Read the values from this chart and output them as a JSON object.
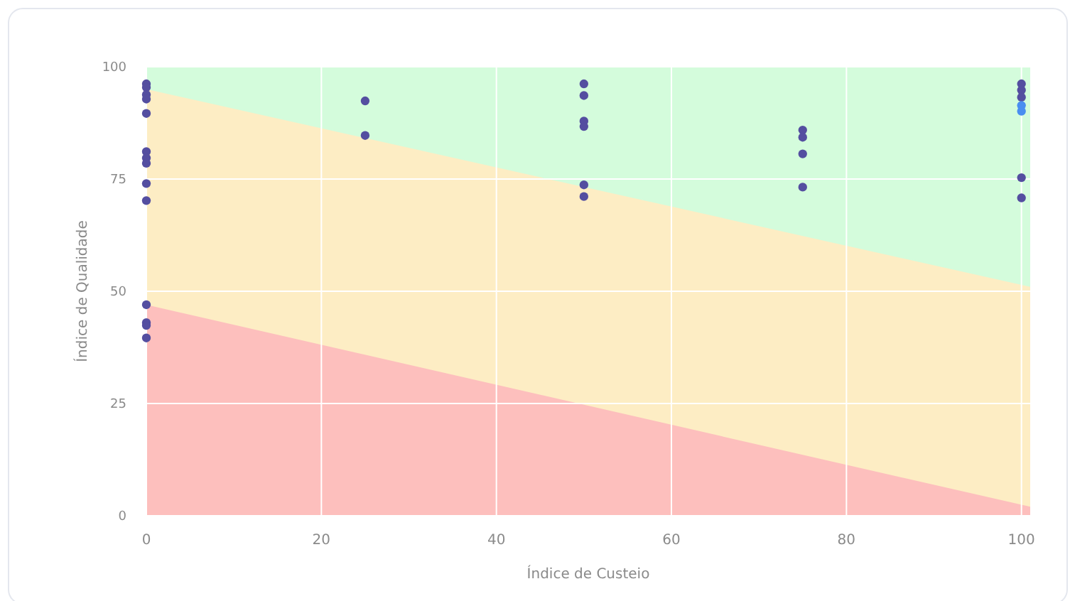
{
  "chart_data": {
    "type": "scatter",
    "xlabel": "Índice de Custeio",
    "ylabel": "Índice de Qualidade",
    "xlim": [
      0,
      101
    ],
    "ylim": [
      0,
      100
    ],
    "xticks": [
      0,
      20,
      40,
      60,
      80,
      100
    ],
    "yticks": [
      0,
      25,
      50,
      75,
      100
    ],
    "grid": true,
    "series": [
      {
        "type": "area",
        "color": "#d4fcdc",
        "x": [
          0,
          101
        ],
        "values": [
          100,
          100
        ]
      },
      {
        "type": "area",
        "color": "#fdedc4",
        "x": [
          0,
          101
        ],
        "values": [
          95,
          51
        ]
      },
      {
        "type": "area",
        "color": "#fdbfbd",
        "x": [
          0,
          101
        ],
        "values": [
          47,
          2
        ]
      },
      {
        "marker": "circle",
        "color": "#544ea0",
        "x": [
          0,
          0,
          0,
          0,
          0,
          0,
          0,
          0,
          0,
          0,
          0,
          0,
          0,
          0,
          25,
          25,
          50,
          50,
          50,
          50,
          50,
          50,
          75,
          75,
          75,
          75,
          100,
          100,
          100,
          100,
          100
        ],
        "values": [
          96.2,
          95.4,
          93.8,
          92.8,
          89.6,
          81.1,
          79.7,
          78.5,
          74,
          70.2,
          47,
          43,
          42.4,
          39.6,
          92.4,
          84.7,
          96.2,
          93.6,
          87.9,
          86.7,
          73.7,
          71.1,
          85.9,
          84.3,
          80.6,
          73.2,
          96.2,
          94.8,
          93.2,
          75.3,
          70.8
        ]
      },
      {
        "marker": "circle",
        "color": "#4a8ef0",
        "x": [
          100,
          100
        ],
        "values": [
          91.4,
          90.1
        ]
      }
    ]
  }
}
